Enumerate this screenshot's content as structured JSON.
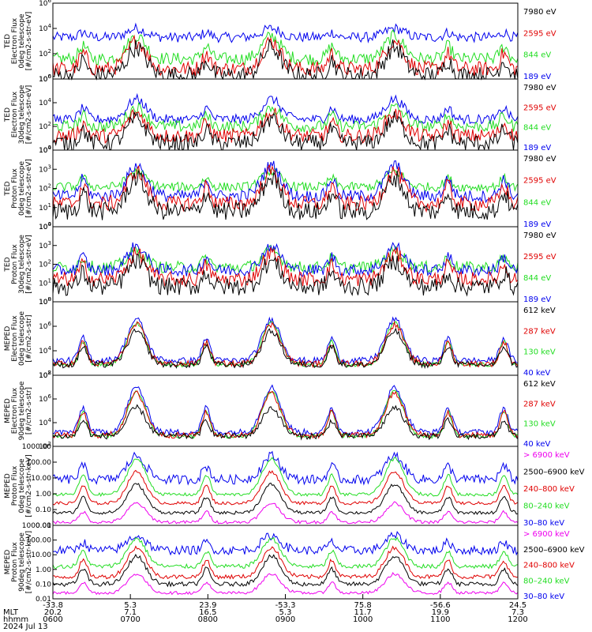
{
  "colors": {
    "black": "#000000",
    "red": "#e00000",
    "green": "#22dd22",
    "blue": "#0000ee",
    "magenta": "#ee00ee"
  },
  "chart_data": [
    {
      "type": "line",
      "ylabel_lines": [
        "TED",
        "Electron Flux",
        "0deg telescope",
        "[#/cm2-s-str-eV]"
      ],
      "yscale": "log",
      "ylim_exp": [
        0,
        6
      ],
      "ytick_labels": [
        "10^0",
        "10^2",
        "10^4",
        "10^6"
      ],
      "legend": [
        {
          "label": "7980 eV",
          "color": "#000000"
        },
        {
          "label": "2595 eV",
          "color": "#e00000"
        },
        {
          "label": "844 eV",
          "color": "#22dd22"
        },
        {
          "label": "189 eV",
          "color": "#0000ee"
        }
      ],
      "series": [
        {
          "color": "#0000ee",
          "base": 3.3,
          "peak": 4.0,
          "noise": 0.4
        },
        {
          "color": "#22dd22",
          "base": 1.6,
          "peak": 3.4,
          "noise": 0.5
        },
        {
          "color": "#e00000",
          "base": 0.8,
          "peak": 3.0,
          "noise": 0.6
        },
        {
          "color": "#000000",
          "base": 0.3,
          "peak": 2.5,
          "noise": 0.7
        }
      ]
    },
    {
      "type": "line",
      "ylabel_lines": [
        "TED",
        "Electron Flux",
        "30deg telescope",
        "[#/cm2-s-str-eV]"
      ],
      "yscale": "log",
      "ylim_exp": [
        0,
        6
      ],
      "ytick_labels": [
        "10^0",
        "10^2",
        "10^4",
        "10^6"
      ],
      "legend": [
        {
          "label": "7980 eV",
          "color": "#000000"
        },
        {
          "label": "2595 eV",
          "color": "#e00000"
        },
        {
          "label": "844 eV",
          "color": "#22dd22"
        },
        {
          "label": "189 eV",
          "color": "#0000ee"
        }
      ],
      "series": [
        {
          "color": "#0000ee",
          "base": 2.6,
          "peak": 4.3,
          "noise": 0.4
        },
        {
          "color": "#22dd22",
          "base": 2.0,
          "peak": 3.6,
          "noise": 0.5
        },
        {
          "color": "#e00000",
          "base": 1.2,
          "peak": 3.1,
          "noise": 0.6
        },
        {
          "color": "#000000",
          "base": 0.6,
          "peak": 2.6,
          "noise": 0.7
        }
      ]
    },
    {
      "type": "line",
      "ylabel_lines": [
        "TED",
        "Proton Flux",
        "0deg telescope",
        "[#/cm2-s-str-eV]"
      ],
      "yscale": "log",
      "ylim_exp": [
        0,
        5
      ],
      "ytick_labels": [
        "10^0",
        "10^1",
        "10^2",
        "10^3",
        "10^4"
      ],
      "legend": [
        {
          "label": "7980 eV",
          "color": "#000000"
        },
        {
          "label": "2595 eV",
          "color": "#e00000"
        },
        {
          "label": "844 eV",
          "color": "#22dd22"
        },
        {
          "label": "189 eV",
          "color": "#0000ee"
        }
      ],
      "series": [
        {
          "color": "#22dd22",
          "base": 2.6,
          "peak": 3.6,
          "noise": 0.3
        },
        {
          "color": "#0000ee",
          "base": 2.0,
          "peak": 4.0,
          "noise": 0.4
        },
        {
          "color": "#e00000",
          "base": 1.5,
          "peak": 3.6,
          "noise": 0.5
        },
        {
          "color": "#000000",
          "base": 1.0,
          "peak": 3.2,
          "noise": 0.6
        }
      ]
    },
    {
      "type": "line",
      "ylabel_lines": [
        "TED",
        "Proton Flux",
        "30deg telescope",
        "[#/cm2-s-str-eV]"
      ],
      "yscale": "log",
      "ylim_exp": [
        0,
        5
      ],
      "ytick_labels": [
        "10^0",
        "10^1",
        "10^2",
        "10^3",
        "10^4"
      ],
      "legend": [
        {
          "label": "7980 eV",
          "color": "#000000"
        },
        {
          "label": "2595 eV",
          "color": "#e00000"
        },
        {
          "label": "844 eV",
          "color": "#22dd22"
        },
        {
          "label": "189 eV",
          "color": "#0000ee"
        }
      ],
      "series": [
        {
          "color": "#22dd22",
          "base": 2.3,
          "peak": 3.4,
          "noise": 0.4
        },
        {
          "color": "#0000ee",
          "base": 2.1,
          "peak": 3.7,
          "noise": 0.4
        },
        {
          "color": "#e00000",
          "base": 1.5,
          "peak": 3.2,
          "noise": 0.5
        },
        {
          "color": "#000000",
          "base": 1.0,
          "peak": 2.7,
          "noise": 0.6
        }
      ]
    },
    {
      "type": "line",
      "ylabel_lines": [
        "MEPED",
        "Electron Flux",
        "0deg telescope",
        "[#/cm2-s-str]"
      ],
      "yscale": "log",
      "ylim_exp": [
        1,
        8
      ],
      "ytick_labels": [
        "10^2",
        "10^4",
        "10^6",
        "10^8"
      ],
      "legend": [
        {
          "label": "612 keV",
          "color": "#000000"
        },
        {
          "label": "287 keV",
          "color": "#e00000"
        },
        {
          "label": "130 keV",
          "color": "#22dd22"
        },
        {
          "label": "40 keV",
          "color": "#0000ee"
        }
      ],
      "series": [
        {
          "color": "#0000ee",
          "base": 2.4,
          "peak": 6.3,
          "noise": 0.3
        },
        {
          "color": "#22dd22",
          "base": 2.0,
          "peak": 6.0,
          "noise": 0.2
        },
        {
          "color": "#e00000",
          "base": 2.1,
          "peak": 5.8,
          "noise": 0.3
        },
        {
          "color": "#000000",
          "base": 2.0,
          "peak": 5.2,
          "noise": 0.3
        }
      ]
    },
    {
      "type": "line",
      "ylabel_lines": [
        "MEPED",
        "Electron Flux",
        "90deg telescope",
        "[#/cm2-s-str]"
      ],
      "yscale": "log",
      "ylim_exp": [
        1,
        8
      ],
      "ytick_labels": [
        "10^2",
        "10^4",
        "10^6",
        "10^8"
      ],
      "legend": [
        {
          "label": "612 keV",
          "color": "#000000"
        },
        {
          "label": "287 keV",
          "color": "#e00000"
        },
        {
          "label": "130 keV",
          "color": "#22dd22"
        },
        {
          "label": "40 keV",
          "color": "#0000ee"
        }
      ],
      "series": [
        {
          "color": "#0000ee",
          "base": 2.4,
          "peak": 6.8,
          "noise": 0.3
        },
        {
          "color": "#22dd22",
          "base": 2.0,
          "peak": 6.4,
          "noise": 0.2
        },
        {
          "color": "#e00000",
          "base": 2.1,
          "peak": 6.2,
          "noise": 0.3
        },
        {
          "color": "#000000",
          "base": 2.0,
          "peak": 4.8,
          "noise": 0.3
        }
      ]
    },
    {
      "type": "line",
      "ylabel_lines": [
        "MEPED",
        "Proton Flux",
        "0deg telescope",
        "[#/cm2-s-str-keV]"
      ],
      "yscale": "log",
      "ylim_exp": [
        -2,
        3
      ],
      "ytick_labels": [
        "0.01",
        "0.10",
        "1.00",
        "10.00",
        "100.00",
        "1000.00"
      ],
      "legend": [
        {
          "label": "> 6900 keV",
          "color": "#ee00ee"
        },
        {
          "label": "2500–6900 keV",
          "color": "#000000"
        },
        {
          "label": "240–800 keV",
          "color": "#e00000"
        },
        {
          "label": "80–240 keV",
          "color": "#22dd22"
        },
        {
          "label": "30–80 keV",
          "color": "#0000ee"
        }
      ],
      "series": [
        {
          "color": "#0000ee",
          "base": 0.9,
          "peak": 2.4,
          "noise": 0.3
        },
        {
          "color": "#22dd22",
          "base": -0.05,
          "peak": 2.2,
          "noise": 0.1
        },
        {
          "color": "#e00000",
          "base": -0.6,
          "peak": 1.4,
          "noise": 0.1
        },
        {
          "color": "#000000",
          "base": -1.2,
          "peak": 0.6,
          "noise": 0.1
        },
        {
          "color": "#ee00ee",
          "base": -1.8,
          "peak": -0.6,
          "noise": 0.1
        }
      ]
    },
    {
      "type": "line",
      "ylabel_lines": [
        "MEPED",
        "Proton Flux",
        "90deg telescope",
        "[#/cm2-s-str-keV]"
      ],
      "yscale": "log",
      "ylim_exp": [
        -2,
        3
      ],
      "ytick_labels": [
        "0.01",
        "0.10",
        "1.00",
        "10.00",
        "100.00",
        "1000.00"
      ],
      "legend": [
        {
          "label": "> 6900 keV",
          "color": "#ee00ee"
        },
        {
          "label": "2500–6900 keV",
          "color": "#000000"
        },
        {
          "label": "240–800 keV",
          "color": "#e00000"
        },
        {
          "label": "80–240 keV",
          "color": "#22dd22"
        },
        {
          "label": "30–80 keV",
          "color": "#0000ee"
        }
      ],
      "series": [
        {
          "color": "#0000ee",
          "base": 1.3,
          "peak": 2.3,
          "noise": 0.3
        },
        {
          "color": "#22dd22",
          "base": 0.2,
          "peak": 2.1,
          "noise": 0.15
        },
        {
          "color": "#e00000",
          "base": -0.5,
          "peak": 1.5,
          "noise": 0.15
        },
        {
          "color": "#000000",
          "base": -1.0,
          "peak": 0.9,
          "noise": 0.15
        },
        {
          "color": "#ee00ee",
          "base": -1.6,
          "peak": -0.3,
          "noise": 0.1
        }
      ]
    }
  ],
  "passes_x": [
    0.065,
    0.18,
    0.33,
    0.47,
    0.6,
    0.735,
    0.85,
    0.97
  ],
  "big_passes_x": [
    0.18,
    0.47,
    0.735
  ],
  "x_axis": {
    "row_labels": [
      "",
      "MLT",
      "hhmm",
      "2024 Jul 13"
    ],
    "tick_values": [
      [
        "-33.8",
        "5.3",
        "23.9",
        "-53.3",
        "75.8",
        "-56.6",
        "24.5"
      ],
      [
        "20.2",
        "7.1",
        "16.5",
        "5.3",
        "11.7",
        "19.9",
        "7.3"
      ],
      [
        "0600",
        "0700",
        "0800",
        "0900",
        "1000",
        "1100",
        "1200"
      ]
    ]
  }
}
